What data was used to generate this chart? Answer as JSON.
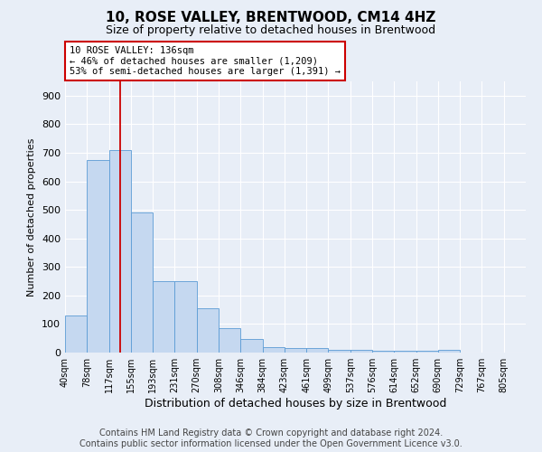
{
  "title": "10, ROSE VALLEY, BRENTWOOD, CM14 4HZ",
  "subtitle": "Size of property relative to detached houses in Brentwood",
  "xlabel": "Distribution of detached houses by size in Brentwood",
  "ylabel": "Number of detached properties",
  "bar_values": [
    130,
    675,
    710,
    490,
    250,
    250,
    155,
    85,
    48,
    20,
    15,
    15,
    10,
    8,
    5,
    5,
    5,
    10,
    0,
    0,
    0
  ],
  "bar_labels": [
    "40sqm",
    "78sqm",
    "117sqm",
    "155sqm",
    "193sqm",
    "231sqm",
    "270sqm",
    "308sqm",
    "346sqm",
    "384sqm",
    "423sqm",
    "461sqm",
    "499sqm",
    "537sqm",
    "576sqm",
    "614sqm",
    "652sqm",
    "690sqm",
    "729sqm",
    "767sqm",
    "805sqm"
  ],
  "bar_color": "#c5d8f0",
  "bar_edge_color": "#5b9bd5",
  "ylim_max": 950,
  "yticks": [
    0,
    100,
    200,
    300,
    400,
    500,
    600,
    700,
    800,
    900
  ],
  "vline_color": "#cc0000",
  "vline_x": 2.5,
  "annotation_line1": "10 ROSE VALLEY: 136sqm",
  "annotation_line2": "← 46% of detached houses are smaller (1,209)",
  "annotation_line3": "53% of semi-detached houses are larger (1,391) →",
  "bg_color": "#e8eef7",
  "grid_color": "#ffffff",
  "title_fontsize": 11,
  "subtitle_fontsize": 9,
  "xlabel_fontsize": 9,
  "ylabel_fontsize": 8,
  "tick_fontsize": 7,
  "footer_fontsize": 7,
  "footer_line1": "Contains HM Land Registry data © Crown copyright and database right 2024.",
  "footer_line2": "Contains public sector information licensed under the Open Government Licence v3.0."
}
